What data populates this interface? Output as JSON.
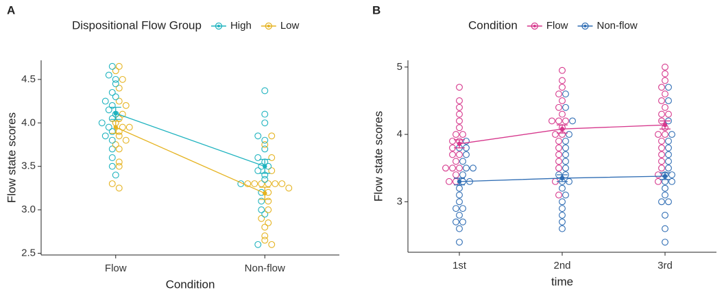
{
  "chart_data": [
    {
      "type": "line",
      "panel": "A",
      "legend_title": "Dispositional Flow Group",
      "x_label": "Condition",
      "y_label": "Flow state scores",
      "categories": [
        "Flow",
        "Non-flow"
      ],
      "ylim": [
        2.48,
        4.72
      ],
      "yticks": [
        2.5,
        {
          "value": 3.0,
          "label": "3.0"
        },
        3.5,
        {
          "value": 4.0,
          "label": "4.0"
        },
        4.5
      ],
      "series": [
        {
          "name": "High",
          "color": "#1fb3bf",
          "values": [
            4.11,
            3.5
          ],
          "errors": [
            0.07,
            0.08
          ],
          "points": [
            [
              4.65,
              4.55,
              4.5,
              4.45,
              4.35,
              4.3,
              4.25,
              4.2,
              4.15,
              4.1,
              4.05,
              4.0,
              3.95,
              3.9,
              3.85,
              3.8,
              3.7,
              3.6,
              3.5,
              3.4
            ],
            [
              4.37,
              4.1,
              4.0,
              3.85,
              3.8,
              3.7,
              3.6,
              3.55,
              3.5,
              3.5,
              3.45,
              3.4,
              3.35,
              3.3,
              3.2,
              3.1,
              3.0,
              2.95,
              2.6
            ]
          ]
        },
        {
          "name": "Low",
          "color": "#e5b320",
          "values": [
            3.95,
            3.19
          ],
          "errors": [
            0.07,
            0.07
          ],
          "points": [
            [
              4.65,
              4.6,
              4.5,
              4.4,
              4.25,
              4.2,
              4.1,
              4.05,
              4.0,
              3.95,
              3.95,
              3.9,
              3.85,
              3.8,
              3.75,
              3.7,
              3.55,
              3.5,
              3.3,
              3.25
            ],
            [
              3.85,
              3.75,
              3.6,
              3.45,
              3.3,
              3.3,
              3.3,
              3.3,
              3.3,
              3.3,
              3.25,
              3.2,
              3.1,
              3.0,
              2.9,
              2.85,
              2.8,
              2.7,
              2.65,
              2.6
            ]
          ]
        }
      ]
    },
    {
      "type": "line",
      "panel": "B",
      "legend_title": "Condition",
      "x_label": "time",
      "y_label": "Flow state scores",
      "categories": [
        "1st",
        "2nd",
        "3rd"
      ],
      "ylim": [
        2.25,
        5.1
      ],
      "yticks": [
        3,
        4,
        5
      ],
      "series": [
        {
          "name": "Flow",
          "color": "#d6378c",
          "values": [
            3.86,
            4.08,
            4.14
          ],
          "errors": [
            0.06,
            0.06,
            0.06
          ],
          "points": [
            [
              4.7,
              4.5,
              4.4,
              4.3,
              4.2,
              4.1,
              4.0,
              4.0,
              3.9,
              3.9,
              3.8,
              3.7,
              3.7,
              3.6,
              3.5,
              3.5,
              3.5,
              3.4,
              3.3,
              3.3
            ],
            [
              4.95,
              4.8,
              4.7,
              4.6,
              4.5,
              4.4,
              4.3,
              4.2,
              4.2,
              4.2,
              4.1,
              4.0,
              4.0,
              3.9,
              3.8,
              3.7,
              3.6,
              3.5,
              3.3,
              3.1
            ],
            [
              5.0,
              4.9,
              4.8,
              4.7,
              4.6,
              4.5,
              4.4,
              4.3,
              4.3,
              4.2,
              4.1,
              4.0,
              4.0,
              3.9,
              3.8,
              3.7,
              3.6,
              3.5,
              3.4,
              3.3
            ]
          ]
        },
        {
          "name": "Non-flow",
          "color": "#2f6db4",
          "values": [
            3.3,
            3.35,
            3.38
          ],
          "errors": [
            0.05,
            0.05,
            0.05
          ],
          "points": [
            [
              3.9,
              3.8,
              3.8,
              3.7,
              3.6,
              3.5,
              3.5,
              3.4,
              3.3,
              3.3,
              3.2,
              3.1,
              3.0,
              2.9,
              2.9,
              2.8,
              2.7,
              2.7,
              2.6,
              2.4
            ],
            [
              4.6,
              4.4,
              4.2,
              4.0,
              3.9,
              3.8,
              3.7,
              3.6,
              3.5,
              3.4,
              3.4,
              3.3,
              3.3,
              3.2,
              3.1,
              3.0,
              2.9,
              2.8,
              2.7,
              2.6
            ],
            [
              4.7,
              4.5,
              4.2,
              4.0,
              3.9,
              3.8,
              3.7,
              3.6,
              3.5,
              3.4,
              3.4,
              3.3,
              3.3,
              3.2,
              3.1,
              3.0,
              3.0,
              2.8,
              2.6,
              2.4
            ]
          ]
        }
      ]
    }
  ]
}
